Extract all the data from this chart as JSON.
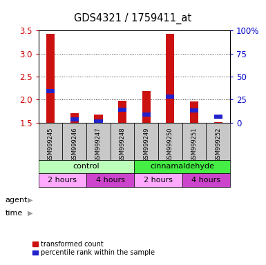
{
  "title": "GDS4321 / 1759411_at",
  "samples": [
    "GSM999245",
    "GSM999246",
    "GSM999247",
    "GSM999248",
    "GSM999249",
    "GSM999250",
    "GSM999251",
    "GSM999252"
  ],
  "red_values": [
    3.43,
    1.7,
    1.68,
    1.97,
    2.19,
    3.43,
    1.96,
    1.51
  ],
  "blue_values": [
    2.18,
    1.57,
    1.52,
    1.78,
    1.68,
    2.06,
    1.77,
    1.63
  ],
  "ymin": 1.5,
  "ymax": 3.5,
  "yticks_left": [
    1.5,
    2.0,
    2.5,
    3.0,
    3.5
  ],
  "yticks_right": [
    0,
    25,
    50,
    75,
    100
  ],
  "bar_width": 0.35,
  "agent_color_light": "#bbffbb",
  "agent_color_dark": "#44ee44",
  "time_color_light": "#ffaaff",
  "time_color_dark": "#cc44cc",
  "legend_red": "transformed count",
  "legend_blue": "percentile rank within the sample",
  "red_color": "#cc1111",
  "blue_color": "#2222cc",
  "bg_sample_color": "#c8c8c8",
  "left_tick_color": "#cc0000",
  "right_tick_color": "#0000cc",
  "grid_color": "#333333"
}
